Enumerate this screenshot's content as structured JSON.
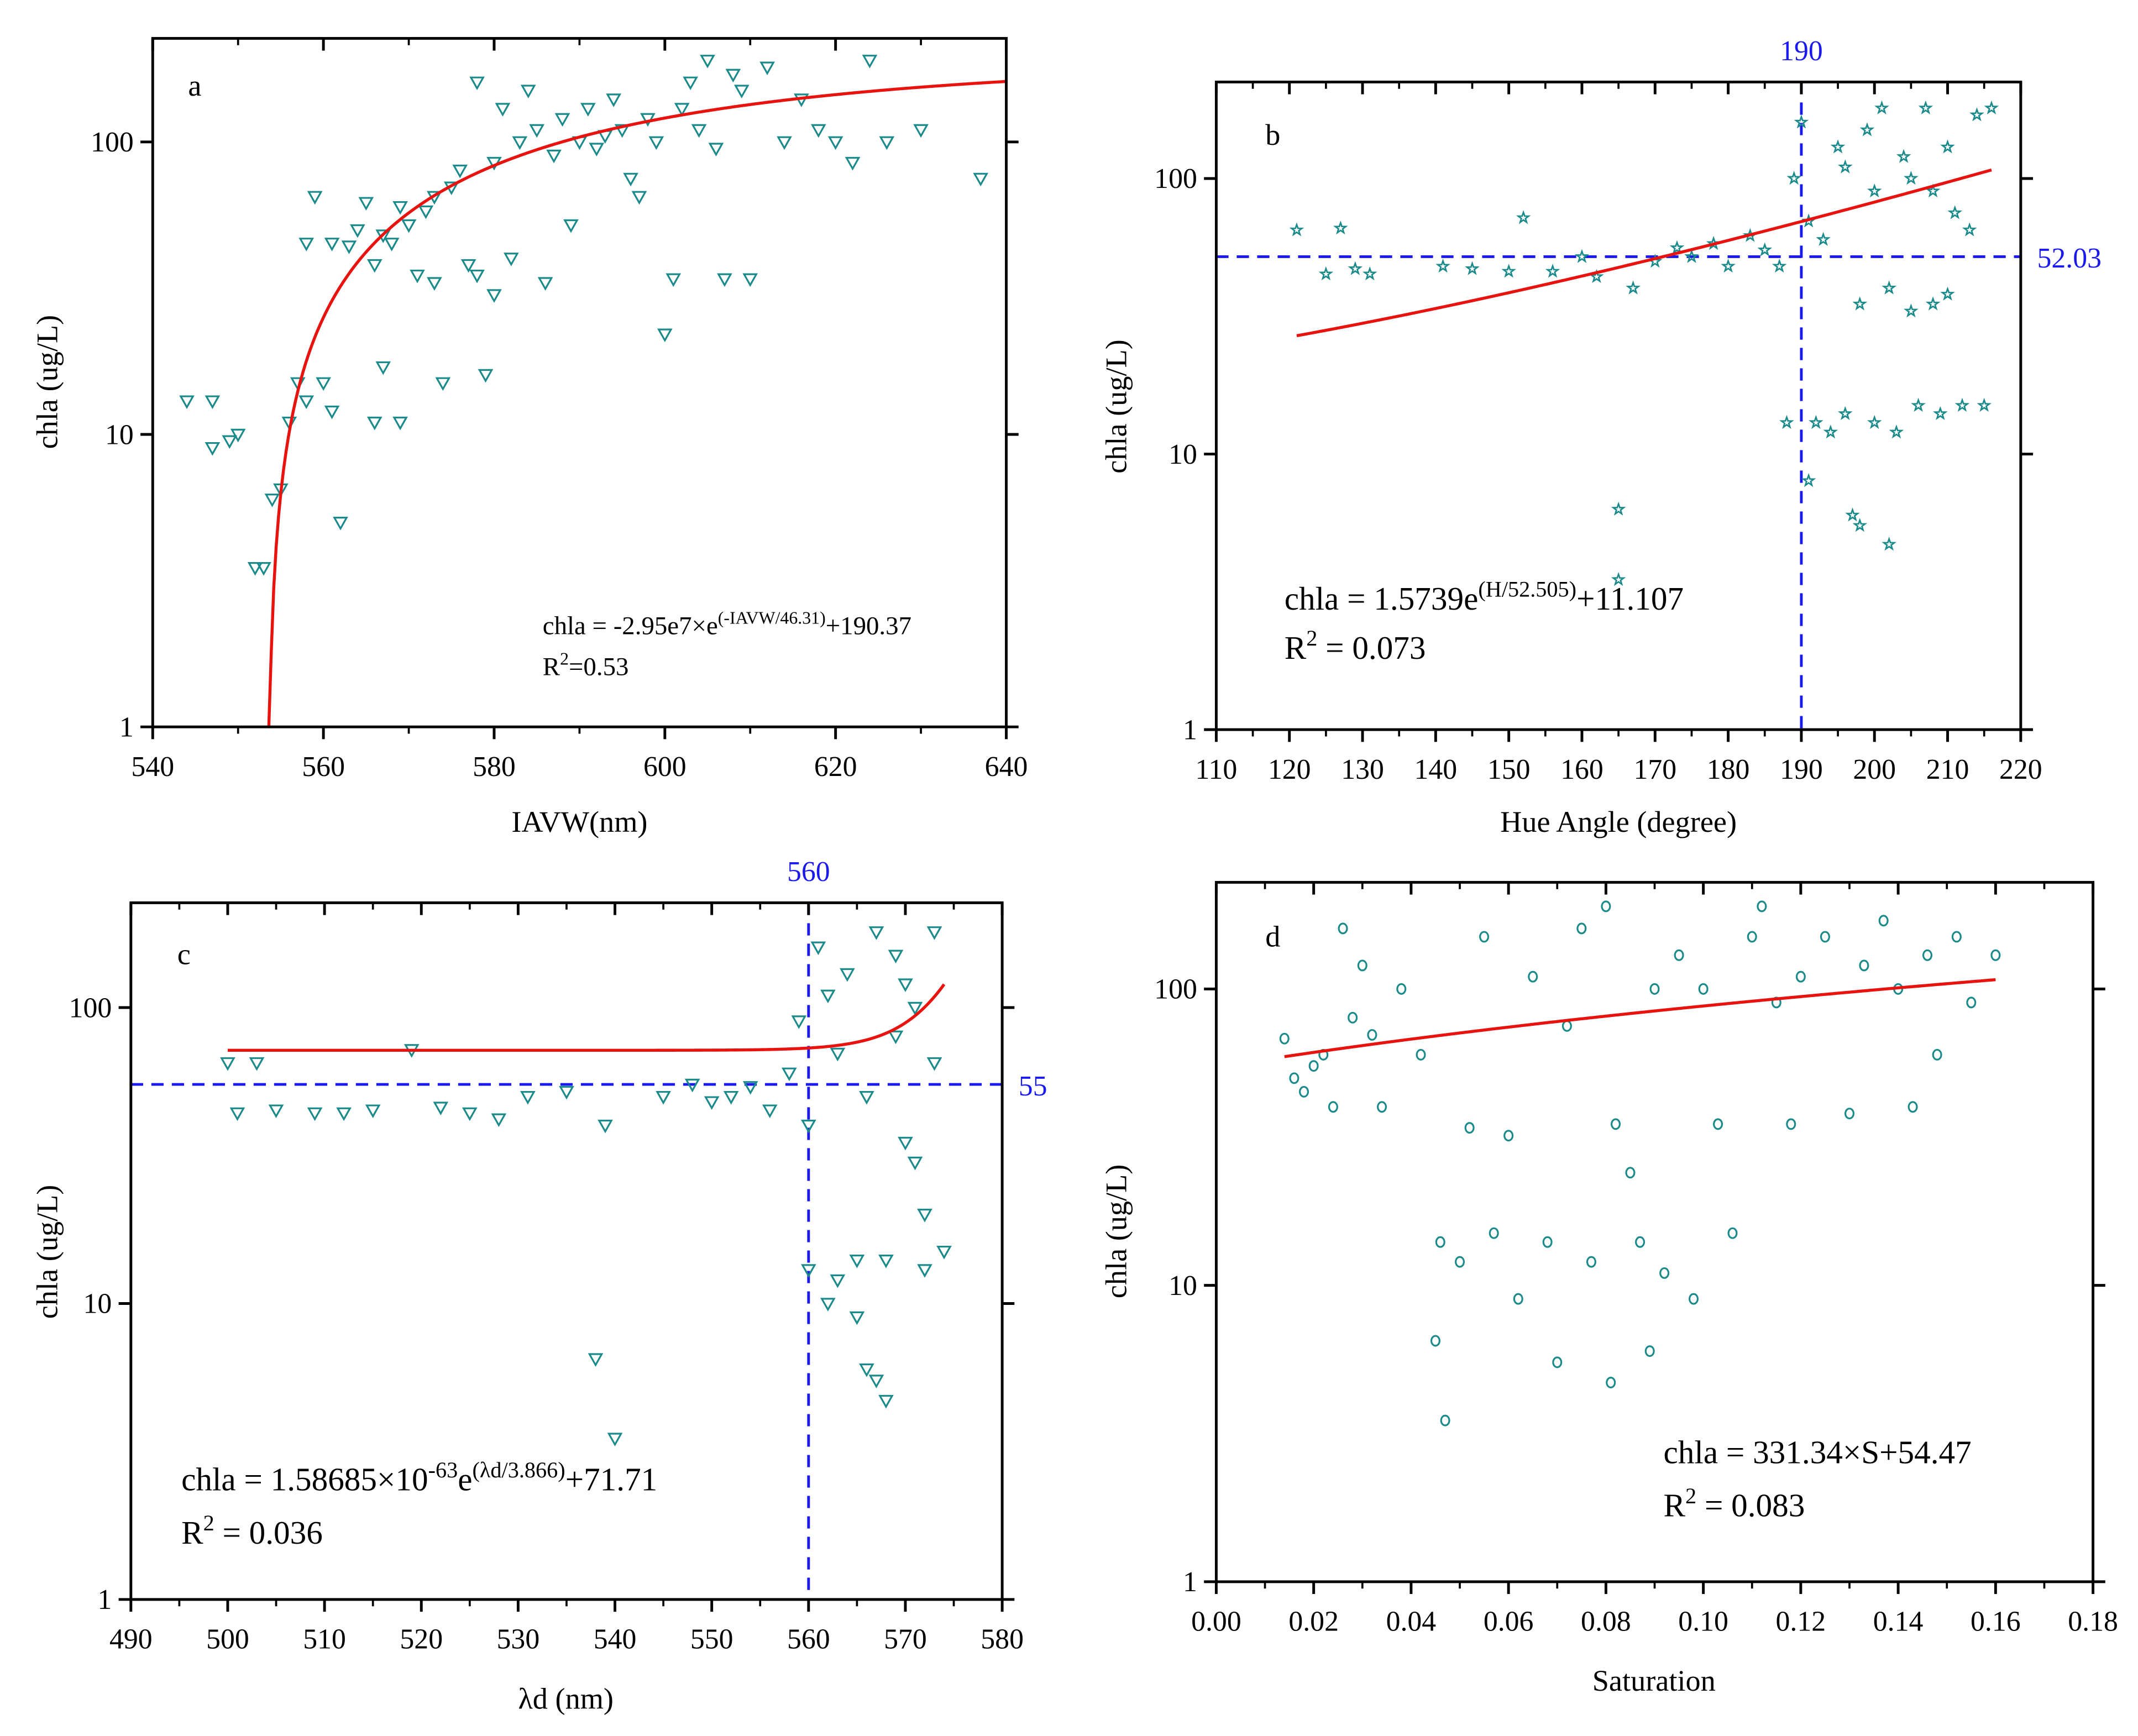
{
  "colors": {
    "marker": "#1b8a8a",
    "fit": "#e8130f",
    "ref": "#1a1aee",
    "axis": "#000000"
  },
  "chart_data": [
    {
      "id": "a",
      "type": "scatter",
      "panel_label": "a",
      "marker": "triangle-down",
      "xlabel": "IAVW(nm)",
      "ylabel": "chla (ug/L)",
      "xlim": [
        540,
        640
      ],
      "xticks": [
        "540",
        "560",
        "580",
        "600",
        "620",
        "640"
      ],
      "ylog": true,
      "ylim": [
        1,
        226
      ],
      "yticks": [
        "1",
        "10",
        "100"
      ],
      "fit": {
        "kind": "exp_decay",
        "a": -29500000,
        "t": 46.31,
        "c": 190.37,
        "xrange": [
          553.6,
          640
        ]
      },
      "equation": {
        "main": "chla = -2.95e7×e",
        "sup": "(-IAVW/46.31)",
        "tail": "+190.37",
        "r2_pre": "R",
        "r2_sup": "2",
        "r2_tail": "=0.53"
      },
      "refs": [],
      "points": [
        [
          544,
          13
        ],
        [
          547,
          13
        ],
        [
          547,
          9
        ],
        [
          549,
          9.5
        ],
        [
          550,
          10
        ],
        [
          552,
          3.5
        ],
        [
          553,
          3.5
        ],
        [
          554,
          6
        ],
        [
          555,
          6.5
        ],
        [
          556,
          11
        ],
        [
          557,
          15
        ],
        [
          558,
          13
        ],
        [
          558,
          45
        ],
        [
          559,
          65
        ],
        [
          560,
          15
        ],
        [
          561,
          12
        ],
        [
          561,
          45
        ],
        [
          562,
          5
        ],
        [
          563,
          44
        ],
        [
          564,
          50
        ],
        [
          565,
          62
        ],
        [
          566,
          11
        ],
        [
          566,
          38
        ],
        [
          567,
          48
        ],
        [
          567,
          17
        ],
        [
          568,
          45
        ],
        [
          569,
          60
        ],
        [
          569,
          11
        ],
        [
          570,
          52
        ],
        [
          571,
          35
        ],
        [
          572,
          58
        ],
        [
          573,
          65
        ],
        [
          573,
          33
        ],
        [
          574,
          15
        ],
        [
          575,
          70
        ],
        [
          576,
          80
        ],
        [
          577,
          38
        ],
        [
          578,
          35
        ],
        [
          578,
          160
        ],
        [
          579,
          16
        ],
        [
          580,
          85
        ],
        [
          580,
          30
        ],
        [
          581,
          130
        ],
        [
          582,
          40
        ],
        [
          583,
          100
        ],
        [
          584,
          150
        ],
        [
          585,
          110
        ],
        [
          586,
          33
        ],
        [
          587,
          90
        ],
        [
          588,
          120
        ],
        [
          589,
          52
        ],
        [
          590,
          100
        ],
        [
          591,
          130
        ],
        [
          592,
          95
        ],
        [
          593,
          105
        ],
        [
          594,
          140
        ],
        [
          595,
          110
        ],
        [
          596,
          75
        ],
        [
          597,
          65
        ],
        [
          598,
          120
        ],
        [
          599,
          100
        ],
        [
          600,
          22
        ],
        [
          601,
          34
        ],
        [
          602,
          130
        ],
        [
          603,
          160
        ],
        [
          604,
          110
        ],
        [
          605,
          190
        ],
        [
          606,
          95
        ],
        [
          607,
          34
        ],
        [
          608,
          170
        ],
        [
          609,
          150
        ],
        [
          610,
          34
        ],
        [
          612,
          180
        ],
        [
          614,
          100
        ],
        [
          616,
          140
        ],
        [
          618,
          110
        ],
        [
          620,
          100
        ],
        [
          622,
          85
        ],
        [
          624,
          190
        ],
        [
          626,
          100
        ],
        [
          630,
          110
        ],
        [
          637,
          75
        ]
      ]
    },
    {
      "id": "b",
      "type": "scatter",
      "panel_label": "b",
      "marker": "star",
      "xlabel": "Hue Angle (degree)",
      "ylabel": "chla (ug/L)",
      "xlim": [
        110,
        220
      ],
      "xticks": [
        "110",
        "120",
        "130",
        "140",
        "150",
        "160",
        "170",
        "180",
        "190",
        "200",
        "210",
        "220"
      ],
      "ylog": true,
      "ylim": [
        1,
        224
      ],
      "yticks": [
        "1",
        "10",
        "100"
      ],
      "fit": {
        "kind": "exp_growth",
        "a": 1.5739,
        "t": 52.505,
        "c": 11.107,
        "xrange": [
          121,
          216
        ]
      },
      "equation": {
        "main": "chla = 1.5739e",
        "sup": "(H/52.505)",
        "tail": "+11.107",
        "r2_pre": "R",
        "r2_sup": "2",
        "r2_tail": " = 0.073"
      },
      "refs": [
        {
          "axis": "x",
          "value": 190,
          "label": "190"
        },
        {
          "axis": "y",
          "value": 52.03,
          "label": "52.03"
        }
      ],
      "points": [
        [
          121,
          65
        ],
        [
          125,
          45
        ],
        [
          127,
          66
        ],
        [
          129,
          47
        ],
        [
          131,
          45
        ],
        [
          141,
          48
        ],
        [
          145,
          47
        ],
        [
          150,
          46
        ],
        [
          152,
          72
        ],
        [
          156,
          46
        ],
        [
          160,
          52
        ],
        [
          162,
          44
        ],
        [
          165,
          6.3
        ],
        [
          165,
          3.5
        ],
        [
          167,
          40
        ],
        [
          170,
          50
        ],
        [
          173,
          56
        ],
        [
          175,
          52
        ],
        [
          178,
          58
        ],
        [
          180,
          48
        ],
        [
          183,
          62
        ],
        [
          185,
          55
        ],
        [
          187,
          48
        ],
        [
          188,
          13
        ],
        [
          189,
          100
        ],
        [
          190,
          160
        ],
        [
          191,
          8
        ],
        [
          191,
          70
        ],
        [
          192,
          13
        ],
        [
          193,
          60
        ],
        [
          194,
          12
        ],
        [
          195,
          130
        ],
        [
          196,
          110
        ],
        [
          196,
          14
        ],
        [
          197,
          6
        ],
        [
          198,
          35
        ],
        [
          198,
          5.5
        ],
        [
          199,
          150
        ],
        [
          200,
          13
        ],
        [
          200,
          90
        ],
        [
          201,
          180
        ],
        [
          202,
          4.7
        ],
        [
          202,
          40
        ],
        [
          203,
          12
        ],
        [
          204,
          120
        ],
        [
          205,
          100
        ],
        [
          205,
          33
        ],
        [
          206,
          15
        ],
        [
          207,
          180
        ],
        [
          208,
          90
        ],
        [
          208,
          35
        ],
        [
          209,
          14
        ],
        [
          210,
          130
        ],
        [
          210,
          38
        ],
        [
          211,
          75
        ],
        [
          212,
          15
        ],
        [
          213,
          65
        ],
        [
          214,
          170
        ],
        [
          215,
          15
        ],
        [
          216,
          180
        ]
      ]
    },
    {
      "id": "c",
      "type": "scatter",
      "panel_label": "c",
      "marker": "triangle-down",
      "xlabel": "λd (nm)",
      "ylabel": "chla (ug/L)",
      "xlim": [
        490,
        580
      ],
      "xticks": [
        "490",
        "500",
        "510",
        "520",
        "530",
        "540",
        "550",
        "560",
        "570",
        "580"
      ],
      "ylog": true,
      "ylim": [
        1,
        226
      ],
      "yticks": [
        "1",
        "10",
        "100"
      ],
      "fit": {
        "kind": "exp_growth",
        "a": 1.58685e-63,
        "t": 3.866,
        "c": 71.71,
        "xrange": [
          500,
          574
        ]
      },
      "equation": {
        "main": "chla = 1.58685×10",
        "sup": "-63",
        "mid": "e",
        "sup2": "(λd/3.866)",
        "tail": "+71.71",
        "r2_pre": "R",
        "r2_sup": "2",
        "r2_tail": " = 0.036"
      },
      "refs": [
        {
          "axis": "x",
          "value": 560,
          "label": "560"
        },
        {
          "axis": "y",
          "value": 55,
          "label": "55"
        }
      ],
      "points": [
        [
          500,
          65
        ],
        [
          501,
          44
        ],
        [
          503,
          65
        ],
        [
          505,
          45
        ],
        [
          509,
          44
        ],
        [
          512,
          44
        ],
        [
          515,
          45
        ],
        [
          519,
          72
        ],
        [
          522,
          46
        ],
        [
          525,
          44
        ],
        [
          528,
          42
        ],
        [
          531,
          50
        ],
        [
          535,
          52
        ],
        [
          538,
          6.5
        ],
        [
          539,
          40
        ],
        [
          540,
          3.5
        ],
        [
          545,
          50
        ],
        [
          548,
          55
        ],
        [
          550,
          48
        ],
        [
          552,
          50
        ],
        [
          554,
          54
        ],
        [
          556,
          45
        ],
        [
          558,
          60
        ],
        [
          559,
          90
        ],
        [
          560,
          13
        ],
        [
          560,
          40
        ],
        [
          561,
          160
        ],
        [
          562,
          10
        ],
        [
          562,
          110
        ],
        [
          563,
          12
        ],
        [
          563,
          70
        ],
        [
          564,
          130
        ],
        [
          565,
          9
        ],
        [
          565,
          14
        ],
        [
          566,
          6
        ],
        [
          566,
          50
        ],
        [
          567,
          180
        ],
        [
          567,
          5.5
        ],
        [
          568,
          4.7
        ],
        [
          568,
          14
        ],
        [
          569,
          150
        ],
        [
          569,
          80
        ],
        [
          570,
          120
        ],
        [
          570,
          35
        ],
        [
          571,
          100
        ],
        [
          571,
          30
        ],
        [
          572,
          20
        ],
        [
          572,
          13
        ],
        [
          573,
          180
        ],
        [
          573,
          65
        ],
        [
          574,
          15
        ]
      ]
    },
    {
      "id": "d",
      "type": "scatter",
      "panel_label": "d",
      "marker": "circle",
      "xlabel": "Saturation",
      "ylabel": "chla (ug/L)",
      "xlim": [
        0,
        0.18
      ],
      "xticks": [
        "0.00",
        "0.02",
        "0.04",
        "0.06",
        "0.08",
        "0.10",
        "0.12",
        "0.14",
        "0.16",
        "0.18"
      ],
      "ylog": true,
      "ylim": [
        1,
        229
      ],
      "yticks": [
        "1",
        "10",
        "100"
      ],
      "fit": {
        "kind": "linear",
        "m": 331.34,
        "c": 54.47,
        "xrange": [
          0.014,
          0.16
        ]
      },
      "equation": {
        "main": "chla = 331.34×S+54.47",
        "r2_pre": "R",
        "r2_sup": "2",
        "r2_tail": " = 0.083"
      },
      "refs": [],
      "points": [
        [
          0.014,
          68
        ],
        [
          0.016,
          50
        ],
        [
          0.018,
          45
        ],
        [
          0.02,
          55
        ],
        [
          0.022,
          60
        ],
        [
          0.024,
          40
        ],
        [
          0.026,
          160
        ],
        [
          0.028,
          80
        ],
        [
          0.03,
          120
        ],
        [
          0.032,
          70
        ],
        [
          0.034,
          40
        ],
        [
          0.038,
          100
        ],
        [
          0.042,
          60
        ],
        [
          0.045,
          6.5
        ],
        [
          0.046,
          14
        ],
        [
          0.047,
          3.5
        ],
        [
          0.05,
          12
        ],
        [
          0.052,
          34
        ],
        [
          0.055,
          150
        ],
        [
          0.057,
          15
        ],
        [
          0.06,
          32
        ],
        [
          0.062,
          9
        ],
        [
          0.065,
          110
        ],
        [
          0.068,
          14
        ],
        [
          0.07,
          5.5
        ],
        [
          0.072,
          75
        ],
        [
          0.075,
          160
        ],
        [
          0.077,
          12
        ],
        [
          0.08,
          190
        ],
        [
          0.081,
          4.7
        ],
        [
          0.082,
          35
        ],
        [
          0.085,
          24
        ],
        [
          0.087,
          14
        ],
        [
          0.089,
          6
        ],
        [
          0.09,
          100
        ],
        [
          0.092,
          11
        ],
        [
          0.095,
          130
        ],
        [
          0.098,
          9
        ],
        [
          0.1,
          100
        ],
        [
          0.103,
          35
        ],
        [
          0.106,
          15
        ],
        [
          0.11,
          150
        ],
        [
          0.112,
          190
        ],
        [
          0.115,
          90
        ],
        [
          0.118,
          35
        ],
        [
          0.12,
          110
        ],
        [
          0.125,
          150
        ],
        [
          0.13,
          38
        ],
        [
          0.133,
          120
        ],
        [
          0.137,
          170
        ],
        [
          0.14,
          100
        ],
        [
          0.143,
          40
        ],
        [
          0.146,
          130
        ],
        [
          0.148,
          60
        ],
        [
          0.152,
          150
        ],
        [
          0.155,
          90
        ],
        [
          0.16,
          130
        ]
      ]
    }
  ]
}
